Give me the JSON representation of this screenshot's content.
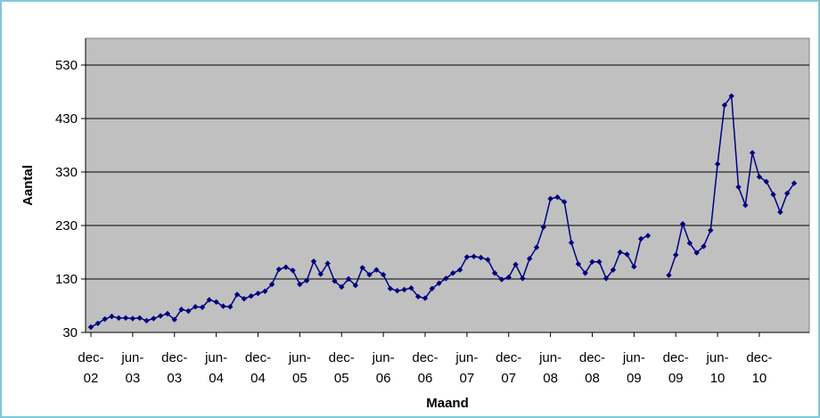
{
  "chart_data": {
    "type": "line",
    "title": "",
    "xlabel": "Maand",
    "ylabel": "Aantal",
    "ylim": [
      30,
      580
    ],
    "yticks": [
      30,
      130,
      230,
      330,
      430,
      530
    ],
    "grid": true,
    "legend": "none",
    "colors": {
      "plot_background": "#c0c0c0",
      "series_line": "#000080",
      "gridline": "#000000",
      "frame_border": "#7fc8d8"
    },
    "x_tick_labels": [
      {
        "line1": "dec-",
        "line2": "02"
      },
      {
        "line1": "jun-",
        "line2": "03"
      },
      {
        "line1": "dec-",
        "line2": "03"
      },
      {
        "line1": "jun-",
        "line2": "04"
      },
      {
        "line1": "dec-",
        "line2": "04"
      },
      {
        "line1": "jun-",
        "line2": "05"
      },
      {
        "line1": "dec-",
        "line2": "05"
      },
      {
        "line1": "jun-",
        "line2": "06"
      },
      {
        "line1": "dec-",
        "line2": "06"
      },
      {
        "line1": "jun-",
        "line2": "07"
      },
      {
        "line1": "dec-",
        "line2": "07"
      },
      {
        "line1": "jun-",
        "line2": "08"
      },
      {
        "line1": "dec-",
        "line2": "08"
      },
      {
        "line1": "jun-",
        "line2": "09"
      },
      {
        "line1": "dec-",
        "line2": "09"
      },
      {
        "line1": "jun-",
        "line2": "10"
      },
      {
        "line1": "dec-",
        "line2": "10"
      }
    ],
    "series": [
      {
        "values": [
          40,
          47,
          55,
          60,
          57,
          57,
          56,
          57,
          52,
          56,
          61,
          65,
          54,
          73,
          70,
          78,
          77,
          91,
          87,
          79,
          78,
          101,
          93,
          98,
          103,
          107,
          120,
          148,
          152,
          146,
          120,
          127,
          163,
          139,
          159,
          126,
          115,
          130,
          118,
          151,
          138,
          147,
          138,
          112,
          108,
          110,
          113,
          97,
          94,
          112,
          122,
          131,
          141,
          147,
          171,
          172,
          170,
          166,
          141,
          129,
          133,
          157,
          131,
          168,
          189,
          227,
          280,
          283,
          274,
          198,
          158,
          141,
          162,
          162,
          131,
          147,
          180,
          176,
          153,
          205,
          211,
          null,
          null,
          137,
          175,
          233,
          197,
          179,
          191,
          221,
          345,
          455,
          472,
          302,
          268,
          366,
          321,
          312,
          288,
          255,
          290,
          309
        ]
      }
    ]
  }
}
